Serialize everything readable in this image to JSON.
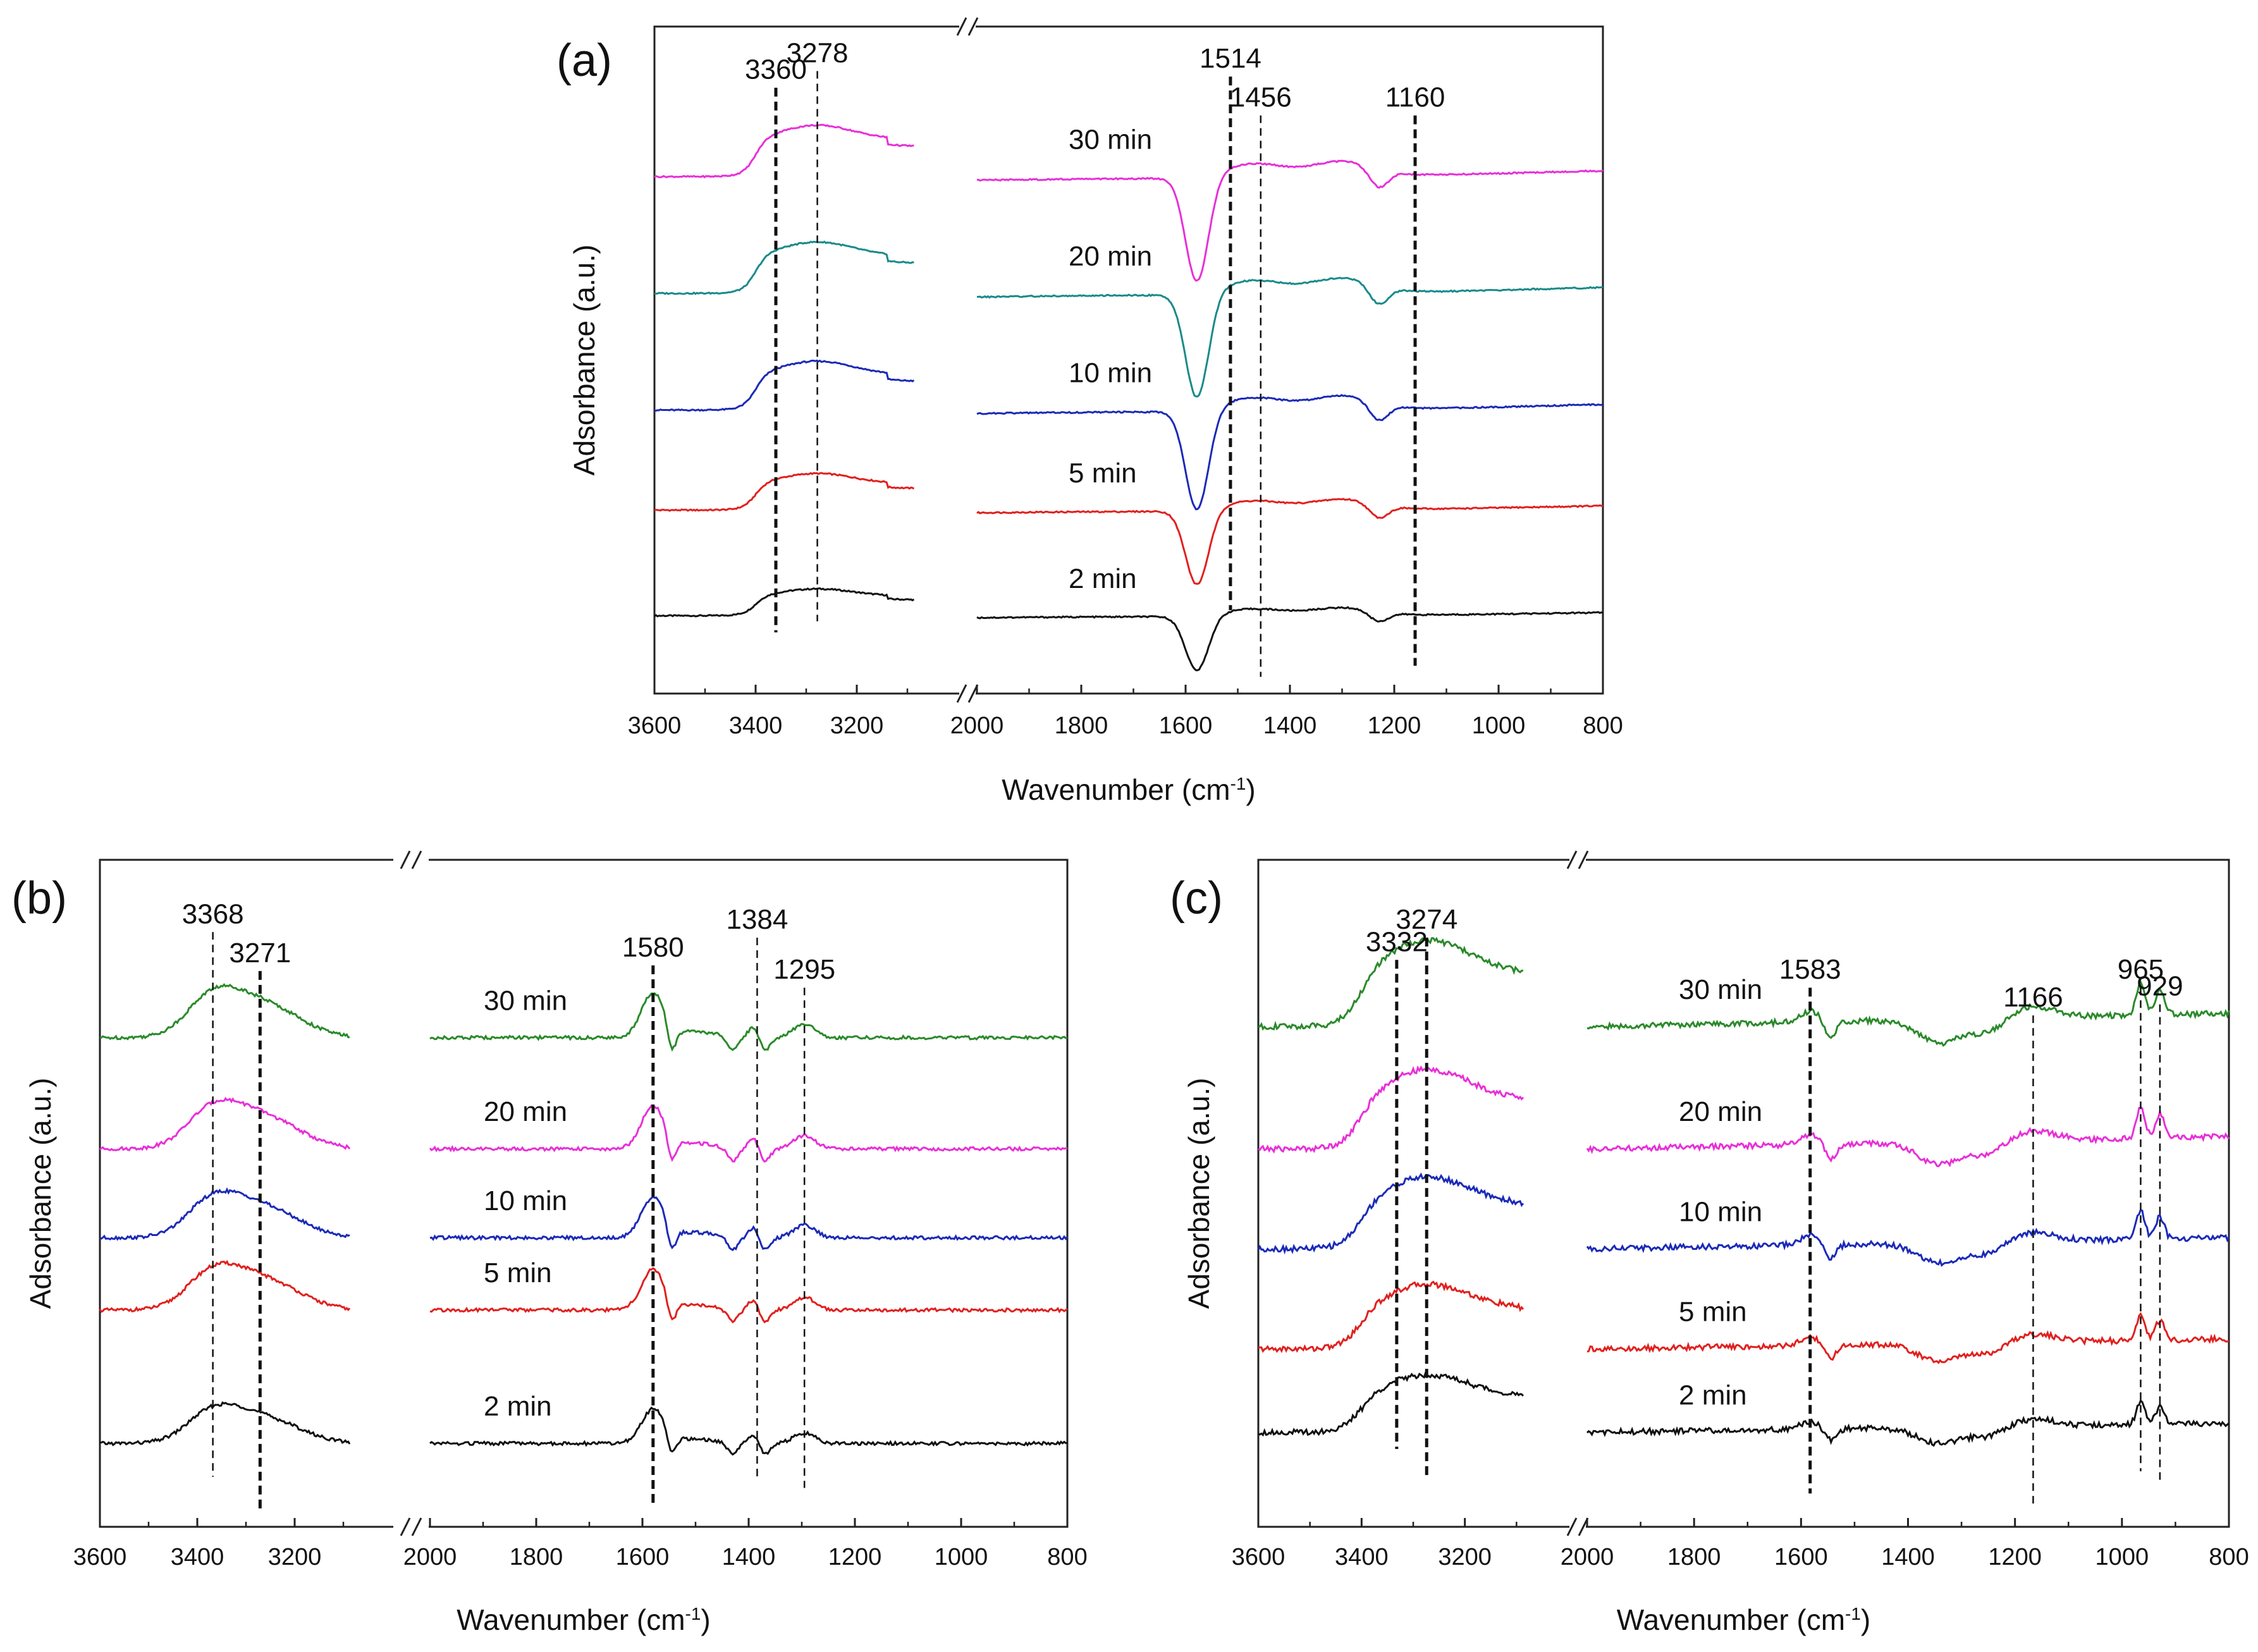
{
  "figure": {
    "description_free": true
  },
  "colors": {
    "2 min": "#111111",
    "5 min": "#e0211f",
    "10 min": "#1c2ab8",
    "20a": "#1a8a8a",
    "30a": "#e830d8",
    "20b": "#e830d8",
    "30b": "#2a8a2a",
    "axis": "#222222"
  },
  "chart_data": [
    {
      "type": "line",
      "panel_label": "(a)",
      "xlabel": "Wavenumber (cm",
      "xlabel_sup": "-1",
      "xlabel_end": ")",
      "ylabel": "Adsorbance (a.u.)",
      "x_segments": [
        [
          3600,
          3000
        ],
        [
          2000,
          800
        ]
      ],
      "xlim_left": [
        3600,
        3000
      ],
      "xlim_right": [
        2000,
        800
      ],
      "ylim": [
        0,
        6
      ],
      "ticks_left": [
        3600,
        3400,
        3200
      ],
      "ticks_right": [
        2000,
        1800,
        1600,
        1400,
        1200,
        1000,
        800
      ],
      "tick_labels_left": [
        "3600",
        "3400",
        "3200"
      ],
      "tick_labels_right": [
        "2000",
        "1800",
        "1600",
        "1400",
        "1200",
        "1000",
        "800"
      ],
      "series": [
        {
          "name": "2 min",
          "label": "2 min",
          "offset": 0.7,
          "color_key": "2 min",
          "shape": "a",
          "scale": 0.55
        },
        {
          "name": "5 min",
          "label": "5 min",
          "offset": 1.65,
          "color_key": "5 min",
          "shape": "a",
          "scale": 0.75
        },
        {
          "name": "10 min",
          "label": "10 min",
          "offset": 2.55,
          "color_key": "10 min",
          "shape": "a",
          "scale": 1.0
        },
        {
          "name": "20 min",
          "label": "20 min",
          "offset": 3.6,
          "color_key": "20a",
          "shape": "a",
          "scale": 1.05
        },
        {
          "name": "30 min",
          "label": "30 min",
          "offset": 4.65,
          "color_key": "30a",
          "shape": "a",
          "scale": 1.05
        }
      ],
      "annotations": [
        {
          "x": 3360,
          "label": "3360",
          "style": "bold",
          "y_top": 5.45,
          "y_bottom": 0.55
        },
        {
          "x": 3278,
          "label": "3278",
          "style": "thin",
          "y_top": 5.6,
          "y_bottom": 0.65
        },
        {
          "x": 1514,
          "label": "1514",
          "style": "bold",
          "y_top": 5.55,
          "y_bottom": 0.75
        },
        {
          "x": 1456,
          "label": "1456",
          "style": "thin",
          "y_top": 5.2,
          "y_bottom": 0.15
        },
        {
          "x": 1160,
          "label": "1160",
          "style": "bold",
          "y_top": 5.2,
          "y_bottom": 0.25
        }
      ]
    },
    {
      "type": "line",
      "panel_label": "(b)",
      "xlabel": "Wavenumber (cm",
      "xlabel_sup": "-1",
      "xlabel_end": ")",
      "ylabel": "Adsorbance (a.u.)",
      "x_segments": [
        [
          3600,
          3000
        ],
        [
          2000,
          800
        ]
      ],
      "xlim_left": [
        3600,
        3000
      ],
      "xlim_right": [
        2000,
        800
      ],
      "ylim": [
        0,
        6
      ],
      "ticks_left": [
        3600,
        3400,
        3200
      ],
      "ticks_right": [
        2000,
        1800,
        1600,
        1400,
        1200,
        1000,
        800
      ],
      "tick_labels_left": [
        "3600",
        "3400",
        "3200"
      ],
      "tick_labels_right": [
        "2000",
        "1800",
        "1600",
        "1400",
        "1200",
        "1000",
        "800"
      ],
      "series": [
        {
          "name": "2 min",
          "label": "2 min",
          "offset": 0.75,
          "color_key": "2 min",
          "shape": "b",
          "scale": 0.8
        },
        {
          "name": "5 min",
          "label": "5 min",
          "offset": 1.95,
          "color_key": "5 min",
          "shape": "b",
          "scale": 0.95
        },
        {
          "name": "10 min",
          "label": "10 min",
          "offset": 2.6,
          "color_key": "10 min",
          "shape": "b",
          "scale": 0.95
        },
        {
          "name": "20 min",
          "label": "20 min",
          "offset": 3.4,
          "color_key": "20b",
          "shape": "b",
          "scale": 1.0
        },
        {
          "name": "30 min",
          "label": "30 min",
          "offset": 4.4,
          "color_key": "30b",
          "shape": "b",
          "scale": 1.05
        }
      ],
      "annotations": [
        {
          "x": 3368,
          "label": "3368",
          "style": "thin",
          "y_top": 5.35,
          "y_bottom": 0.45
        },
        {
          "x": 3271,
          "label": "3271",
          "style": "bold",
          "y_top": 5.0,
          "y_bottom": 0.15
        },
        {
          "x": 1580,
          "label": "1580",
          "style": "bold",
          "y_top": 5.05,
          "y_bottom": 0.2
        },
        {
          "x": 1384,
          "label": "1384",
          "style": "thin",
          "y_top": 5.3,
          "y_bottom": 0.45
        },
        {
          "x": 1295,
          "label": "1295",
          "style": "thin",
          "y_top": 4.85,
          "y_bottom": 0.35
        }
      ]
    },
    {
      "type": "line",
      "panel_label": "(c)",
      "xlabel": "Wavenumber (cm",
      "xlabel_sup": "-1",
      "xlabel_end": ")",
      "ylabel": "Adsorbance (a.u.)",
      "x_segments": [
        [
          3600,
          3000
        ],
        [
          2000,
          800
        ]
      ],
      "xlim_left": [
        3600,
        3000
      ],
      "xlim_right": [
        2000,
        800
      ],
      "ylim": [
        0,
        6
      ],
      "ticks_left": [
        3600,
        3400,
        3200
      ],
      "ticks_right": [
        2000,
        1800,
        1600,
        1400,
        1200,
        1000,
        800
      ],
      "tick_labels_left": [
        "3600",
        "3400",
        "3200"
      ],
      "tick_labels_right": [
        "2000",
        "1800",
        "1600",
        "1400",
        "1200",
        "1000",
        "800"
      ],
      "series": [
        {
          "name": "2 min",
          "label": "2 min",
          "offset": 0.85,
          "color_key": "2 min",
          "shape": "c",
          "scale": 0.8
        },
        {
          "name": "5 min",
          "label": "5 min",
          "offset": 1.6,
          "color_key": "5 min",
          "shape": "c",
          "scale": 0.9
        },
        {
          "name": "10 min",
          "label": "10 min",
          "offset": 2.5,
          "color_key": "10 min",
          "shape": "c",
          "scale": 1.0
        },
        {
          "name": "20 min",
          "label": "20 min",
          "offset": 3.4,
          "color_key": "20b",
          "shape": "c",
          "scale": 1.1
        },
        {
          "name": "30 min",
          "label": "30 min",
          "offset": 4.5,
          "color_key": "30b",
          "shape": "c",
          "scale": 1.2
        }
      ],
      "annotations": [
        {
          "x": 3332,
          "label": "3332",
          "style": "bold",
          "y_top": 5.1,
          "y_bottom": 0.7
        },
        {
          "x": 3274,
          "label": "3274",
          "style": "bold",
          "y_top": 5.3,
          "y_bottom": 0.45
        },
        {
          "x": 1583,
          "label": "1583",
          "style": "bold",
          "y_top": 4.85,
          "y_bottom": 0.3
        },
        {
          "x": 1166,
          "label": "1166",
          "style": "thin",
          "y_top": 4.6,
          "y_bottom": 0.2
        },
        {
          "x": 965,
          "label": "965",
          "style": "thin",
          "y_top": 4.85,
          "y_bottom": 0.5
        },
        {
          "x": 929,
          "label": "929",
          "style": "thin",
          "y_top": 4.7,
          "y_bottom": 0.4
        }
      ]
    }
  ]
}
